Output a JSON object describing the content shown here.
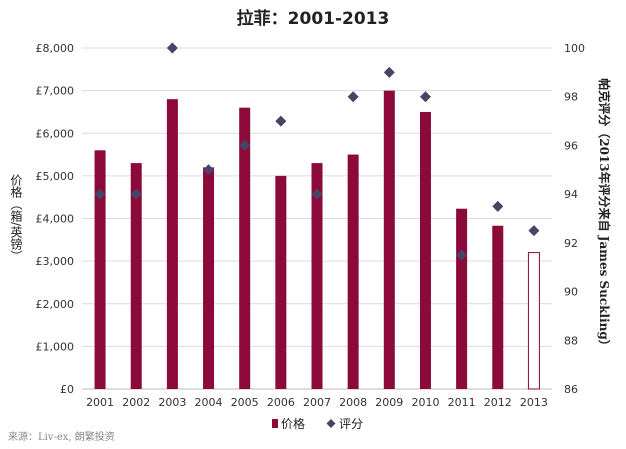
{
  "chart_data": {
    "type": "bar",
    "title": "拉菲：2001-2013",
    "categories": [
      "2001",
      "2002",
      "2003",
      "2004",
      "2005",
      "2006",
      "2007",
      "2008",
      "2009",
      "2010",
      "2011",
      "2012",
      "2013"
    ],
    "series": [
      {
        "name": "价格",
        "type": "bar",
        "axis": "left",
        "color": "#8b0a3a",
        "values": [
          5600,
          5300,
          6800,
          5200,
          6600,
          5000,
          5300,
          5500,
          7000,
          6500,
          4230,
          3830,
          3200
        ],
        "hollow_last": true
      },
      {
        "name": "评分",
        "type": "scatter",
        "axis": "right",
        "color": "#4a4368",
        "marker": "diamond",
        "values": [
          94,
          94,
          100,
          95,
          96,
          97,
          94,
          98,
          99,
          98,
          91.5,
          93.5,
          92.5
        ]
      }
    ],
    "ylabel_left": "价格（箱/英镑）",
    "ylabel_right": "帕克评分（2013年评分来自 James Suckling）",
    "ylim_left": [
      0,
      8000
    ],
    "ylim_right": [
      86,
      100
    ],
    "yticks_left": [
      "£0",
      "£1,000",
      "£2,000",
      "£3,000",
      "£4,000",
      "£5,000",
      "£6,000",
      "£7,000",
      "£8,000"
    ],
    "yticks_right": [
      "86",
      "88",
      "90",
      "92",
      "94",
      "96",
      "98",
      "100"
    ],
    "grid": true,
    "legend_position": "bottom"
  },
  "source_note": "来源：Liv-ex, 朗繁投资"
}
